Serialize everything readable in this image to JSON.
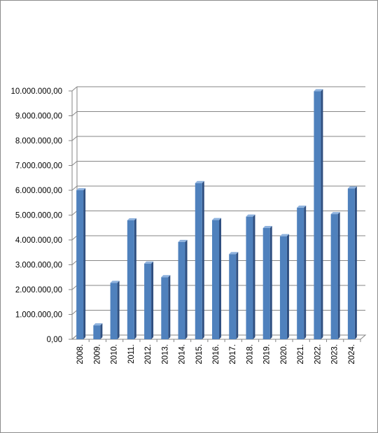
{
  "chart_data": {
    "type": "bar",
    "title": "",
    "xlabel": "",
    "ylabel": "",
    "ylim": [
      0,
      10000000
    ],
    "grid": true,
    "legend": "none",
    "bar_color": "#4f81bd",
    "bar_side_color": "#2f4f80",
    "bar_top_color": "#8eb2de",
    "y_ticks": [
      {
        "value": 0,
        "label": "0,00"
      },
      {
        "value": 1000000,
        "label": "1.000.000,00"
      },
      {
        "value": 2000000,
        "label": "2.000.000,00"
      },
      {
        "value": 3000000,
        "label": "3.000.000,00"
      },
      {
        "value": 4000000,
        "label": "4.000.000,00"
      },
      {
        "value": 5000000,
        "label": "5.000.000,00"
      },
      {
        "value": 6000000,
        "label": "6.000.000,00"
      },
      {
        "value": 7000000,
        "label": "7.000.000,00"
      },
      {
        "value": 8000000,
        "label": "8.000.000,00"
      },
      {
        "value": 9000000,
        "label": "9.000.000,00"
      },
      {
        "value": 10000000,
        "label": "10.000.000,00"
      }
    ],
    "categories": [
      "2008.",
      "2009.",
      "2010.",
      "2011.",
      "2012.",
      "2013.",
      "2014.",
      "2015.",
      "2016.",
      "2017.",
      "2018.",
      "2019.",
      "2020.",
      "2021.",
      "2022.",
      "2023.",
      "2024."
    ],
    "values": [
      6000000,
      560000,
      2270000,
      4790000,
      3050000,
      2500000,
      3920000,
      6290000,
      4800000,
      3430000,
      4940000,
      4480000,
      4150000,
      5300000,
      9990000,
      5040000,
      6070000
    ]
  }
}
